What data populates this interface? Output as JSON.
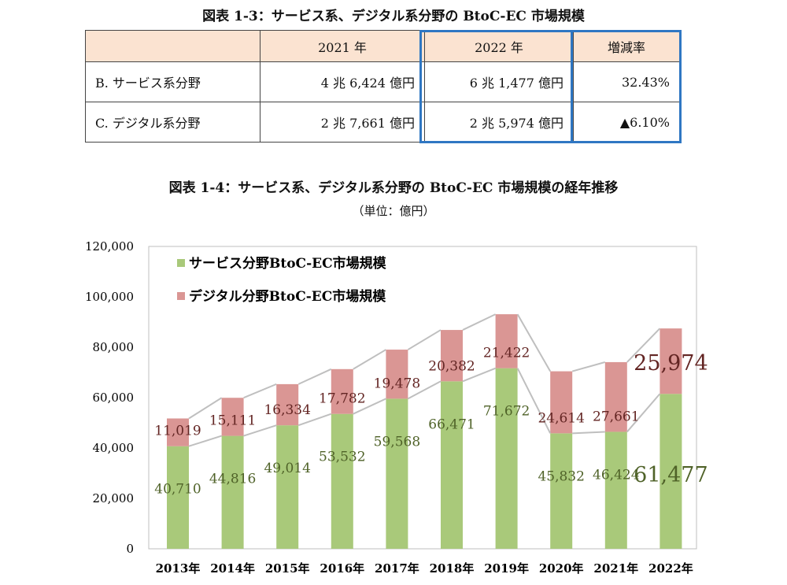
{
  "table": {
    "title": "図表 1-3：サービス系、デジタル系分野の BtoC-EC 市場規模",
    "headers": [
      "",
      "2021 年",
      "2022 年",
      "増減率"
    ],
    "rows": [
      {
        "label": "B. サービス系分野",
        "y2021": "4 兆 6,424 億円",
        "y2022": "6 兆 1,477 億円",
        "change": "32.43%"
      },
      {
        "label": "C. デジタル系分野",
        "y2021": "2 兆 7,661 億円",
        "y2022": "2 兆 5,974 億円",
        "change": "▲6.10%"
      }
    ],
    "highlight_color": "#2f77c3",
    "header_bg": "#fbe3d1"
  },
  "chart_data": {
    "type": "bar",
    "stacked": true,
    "title": "図表 1-4：サービス系、デジタル系分野の BtoC-EC 市場規模の経年推移",
    "subtitle": "（単位：億円）",
    "categories": [
      "2013年",
      "2014年",
      "2015年",
      "2016年",
      "2017年",
      "2018年",
      "2019年",
      "2020年",
      "2021年",
      "2022年"
    ],
    "series": [
      {
        "name": "サービス分野BtoC-EC市場規模",
        "color": "#a9c97a",
        "label_color": "#4f6228",
        "values": [
          40710,
          44816,
          49014,
          53532,
          59568,
          66471,
          71672,
          45832,
          46424,
          61477
        ],
        "labels": [
          "40,710",
          "44,816",
          "49,014",
          "53,532",
          "59,568",
          "66,471",
          "71,672",
          "45,832",
          "46,424",
          "61,477"
        ]
      },
      {
        "name": "デジタル分野BtoC-EC市場規模",
        "color": "#da9694",
        "label_color": "#632523",
        "values": [
          11019,
          15111,
          16334,
          17782,
          19478,
          20382,
          21422,
          24614,
          27661,
          25974
        ],
        "labels": [
          "11,019",
          "15,111",
          "16,334",
          "17,782",
          "19,478",
          "20,382",
          "21,422",
          "24,614",
          "27,661",
          "25,974"
        ]
      }
    ],
    "ylim": [
      0,
      120000
    ],
    "yticks": [
      0,
      20000,
      40000,
      60000,
      80000,
      100000,
      120000
    ],
    "ytick_labels": [
      "0",
      "20,000",
      "40,000",
      "60,000",
      "80,000",
      "100,000",
      "120,000"
    ],
    "grid": false,
    "legend": "top-left",
    "highlighted_category": "2022年"
  }
}
